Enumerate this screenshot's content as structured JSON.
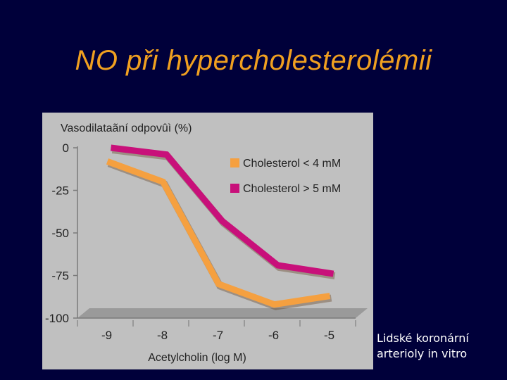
{
  "slide": {
    "title": "NO při hypercholesterolémii",
    "caption": [
      "Lidské koronární",
      "arterioly in vitro"
    ]
  },
  "colors": {
    "background": "#00003a",
    "title": "#f0a020",
    "plot_area": "#c0c0c0",
    "floor": "#9a9a9a",
    "series_orange": "#f5a040",
    "series_magenta": "#c8107a"
  },
  "chart_data": {
    "type": "line",
    "title": "",
    "ylabel": "Vasodilataãní odpovûì (%)",
    "xlabel": "Acetylcholin (log M)",
    "x_ticks": [
      "-9",
      "-8",
      "-7",
      "-6",
      "-5"
    ],
    "y_ticks": [
      "0",
      "-25",
      "-50",
      "-75",
      "-100"
    ],
    "ylim": [
      -100,
      0
    ],
    "xlim": [
      -9.5,
      -4.5
    ],
    "grid": true,
    "legend": "top-right",
    "series": [
      {
        "name": "Cholesterol < 4 mM",
        "color": "#f5a040",
        "x": [
          -9,
          -8,
          -7,
          -6,
          -5
        ],
        "y": [
          -8,
          -20,
          -80,
          -92,
          -87
        ]
      },
      {
        "name": "Cholesterol > 5 mM",
        "color": "#c8107a",
        "x": [
          -9,
          -8,
          -7,
          -6,
          -5
        ],
        "y": [
          0,
          -4,
          -43,
          -69,
          -74
        ]
      }
    ]
  }
}
